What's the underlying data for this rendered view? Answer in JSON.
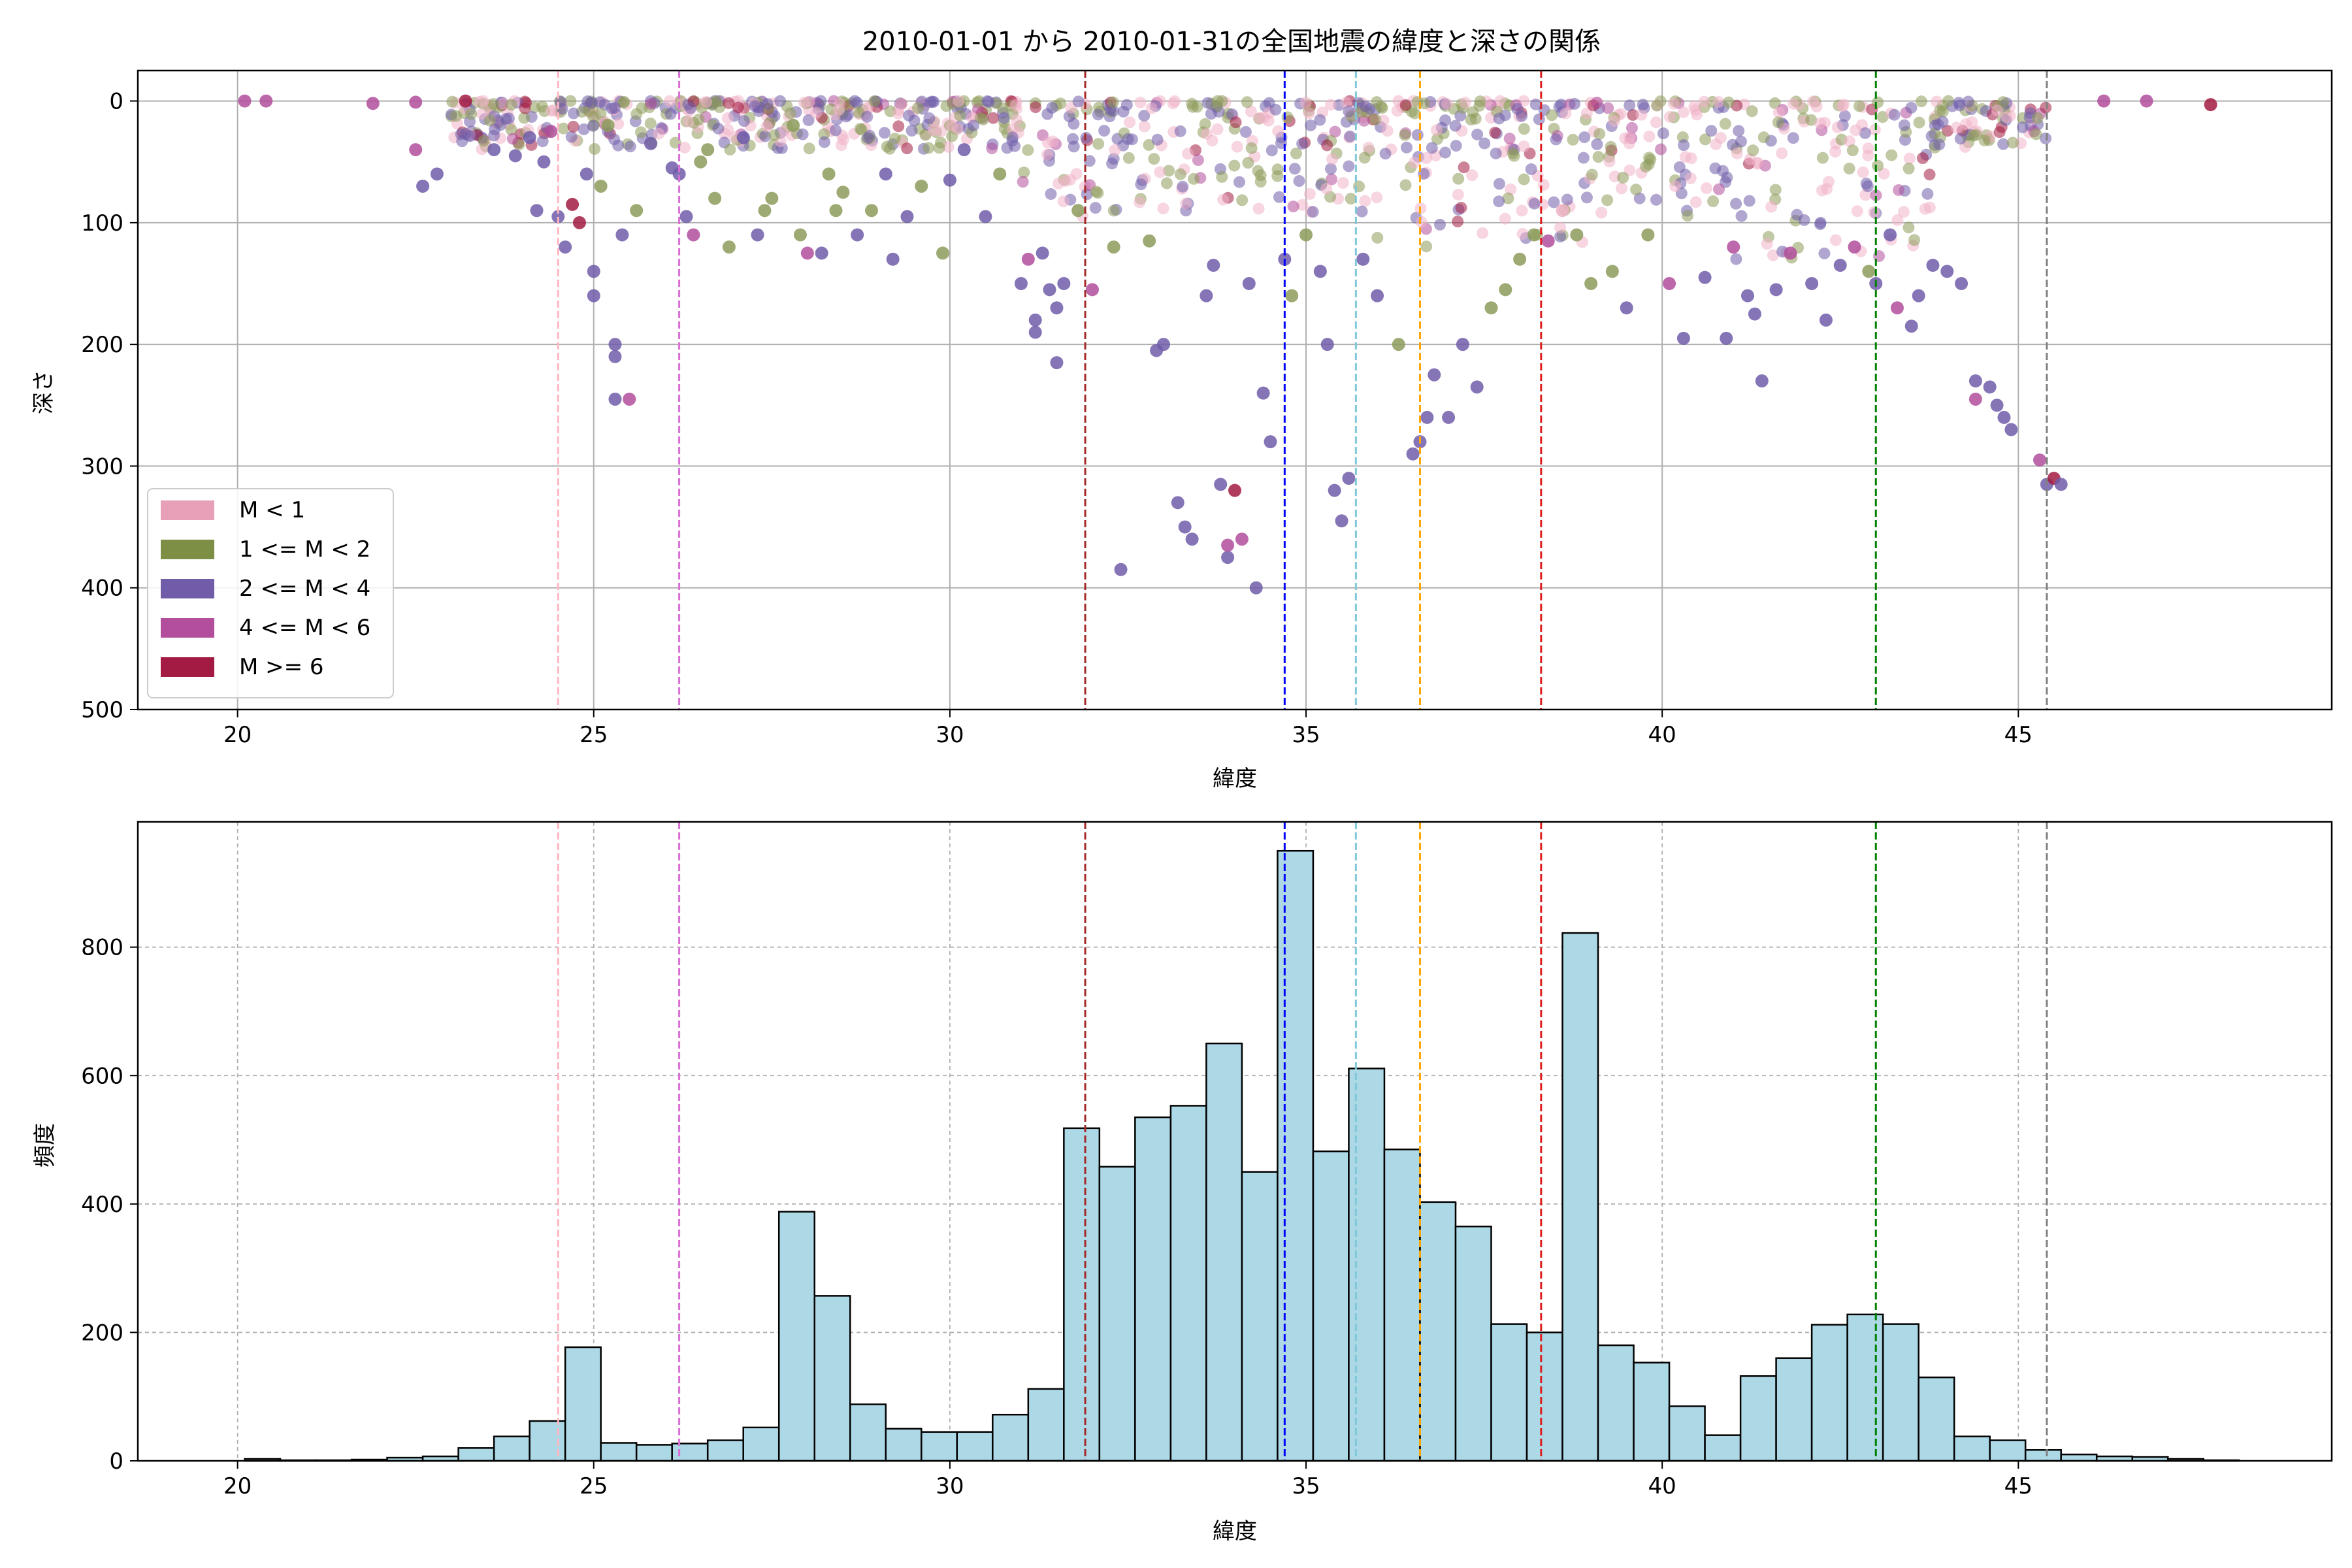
{
  "figure_title": "2010-01-01 から 2010-01-31の全国地震の緯度と深さの関係",
  "chart_data": [
    {
      "type": "scatter",
      "xlabel": "緯度",
      "ylabel": "深さ",
      "xlim": [
        18.6,
        49.4
      ],
      "ylim": [
        500,
        -25
      ],
      "y_inverted": true,
      "grid": true,
      "xticks": [
        20,
        25,
        30,
        35,
        40,
        45
      ],
      "yticks": [
        0,
        100,
        200,
        300,
        400,
        500
      ],
      "legend_position": "lower-left",
      "legend": [
        {
          "label": "M < 1",
          "color": "#e7a0b8"
        },
        {
          "label": "1 <= M < 2",
          "color": "#7d8f45"
        },
        {
          "label": "2 <= M < 4",
          "color": "#705ca9"
        },
        {
          "label": "4 <= M < 6",
          "color": "#b24e9c"
        },
        {
          "label": "M >= 6",
          "color": "#a31b42"
        }
      ],
      "scatter_colors": [
        "#f0b3c8",
        "#8c9b5a",
        "#705ca9",
        "#b24e9c",
        "#a31b42"
      ],
      "vlines": [
        {
          "x": 24.5,
          "color": "#ffb6c1"
        },
        {
          "x": 26.2,
          "color": "#da70d6"
        },
        {
          "x": 31.9,
          "color": "#a52a2a"
        },
        {
          "x": 34.7,
          "color": "#0000ff"
        },
        {
          "x": 35.7,
          "color": "#7ec8d8"
        },
        {
          "x": 36.6,
          "color": "#ffa500"
        },
        {
          "x": 38.3,
          "color": "#dd1f1f"
        },
        {
          "x": 43.0,
          "color": "#008000"
        },
        {
          "x": 45.4,
          "color": "#808080"
        }
      ],
      "points": [
        [
          20.1,
          0,
          3
        ],
        [
          20.4,
          0,
          3
        ],
        [
          21.9,
          2,
          3
        ],
        [
          22.5,
          1,
          3
        ],
        [
          22.5,
          40,
          3
        ],
        [
          22.6,
          70,
          2
        ],
        [
          22.8,
          60,
          2
        ],
        [
          23.2,
          0,
          4
        ],
        [
          23.6,
          40,
          2
        ],
        [
          23.9,
          45,
          2
        ],
        [
          24.1,
          30,
          2
        ],
        [
          24.2,
          90,
          2
        ],
        [
          24.3,
          50,
          2
        ],
        [
          24.4,
          25,
          3
        ],
        [
          24.5,
          95,
          2
        ],
        [
          24.6,
          120,
          2
        ],
        [
          24.7,
          85,
          4
        ],
        [
          24.8,
          100,
          4
        ],
        [
          24.9,
          60,
          2
        ],
        [
          25.0,
          140,
          2
        ],
        [
          25.0,
          160,
          2
        ],
        [
          25.1,
          70,
          1
        ],
        [
          25.2,
          20,
          1
        ],
        [
          25.3,
          200,
          2
        ],
        [
          25.3,
          210,
          2
        ],
        [
          25.3,
          245,
          2
        ],
        [
          25.4,
          110,
          2
        ],
        [
          25.5,
          245,
          3
        ],
        [
          25.6,
          90,
          1
        ],
        [
          25.8,
          35,
          2
        ],
        [
          26.1,
          55,
          2
        ],
        [
          26.2,
          60,
          2
        ],
        [
          26.3,
          95,
          2
        ],
        [
          26.4,
          110,
          3
        ],
        [
          26.5,
          50,
          1
        ],
        [
          26.6,
          40,
          1
        ],
        [
          26.7,
          80,
          1
        ],
        [
          26.9,
          120,
          1
        ],
        [
          27.1,
          30,
          2
        ],
        [
          27.3,
          110,
          2
        ],
        [
          27.4,
          90,
          1
        ],
        [
          27.5,
          80,
          1
        ],
        [
          27.8,
          20,
          1
        ],
        [
          27.9,
          110,
          1
        ],
        [
          28.0,
          125,
          3
        ],
        [
          28.2,
          125,
          2
        ],
        [
          28.3,
          60,
          1
        ],
        [
          28.4,
          90,
          1
        ],
        [
          28.5,
          75,
          1
        ],
        [
          28.7,
          110,
          2
        ],
        [
          28.9,
          90,
          1
        ],
        [
          29.1,
          60,
          2
        ],
        [
          29.2,
          130,
          2
        ],
        [
          29.4,
          95,
          2
        ],
        [
          29.6,
          70,
          1
        ],
        [
          29.9,
          125,
          1
        ],
        [
          30.0,
          65,
          2
        ],
        [
          30.2,
          40,
          2
        ],
        [
          30.5,
          95,
          2
        ],
        [
          30.7,
          60,
          1
        ],
        [
          31.0,
          150,
          2
        ],
        [
          31.1,
          130,
          3
        ],
        [
          31.2,
          180,
          2
        ],
        [
          31.2,
          190,
          2
        ],
        [
          31.3,
          125,
          2
        ],
        [
          31.4,
          155,
          2
        ],
        [
          31.5,
          170,
          2
        ],
        [
          31.5,
          215,
          2
        ],
        [
          31.6,
          150,
          2
        ],
        [
          31.8,
          90,
          1
        ],
        [
          32.0,
          155,
          3
        ],
        [
          32.3,
          120,
          1
        ],
        [
          32.4,
          385,
          2
        ],
        [
          32.8,
          115,
          1
        ],
        [
          32.9,
          205,
          2
        ],
        [
          33.0,
          200,
          2
        ],
        [
          33.2,
          330,
          2
        ],
        [
          33.3,
          350,
          2
        ],
        [
          33.4,
          360,
          2
        ],
        [
          33.6,
          160,
          2
        ],
        [
          33.7,
          135,
          2
        ],
        [
          33.8,
          315,
          2
        ],
        [
          33.9,
          375,
          2
        ],
        [
          33.9,
          365,
          3
        ],
        [
          34.0,
          320,
          4
        ],
        [
          34.1,
          360,
          3
        ],
        [
          34.2,
          150,
          2
        ],
        [
          34.3,
          400,
          2
        ],
        [
          34.4,
          240,
          2
        ],
        [
          34.5,
          280,
          2
        ],
        [
          34.7,
          130,
          2
        ],
        [
          34.8,
          160,
          1
        ],
        [
          35.0,
          110,
          1
        ],
        [
          35.2,
          140,
          2
        ],
        [
          35.3,
          200,
          2
        ],
        [
          35.4,
          320,
          2
        ],
        [
          35.5,
          345,
          2
        ],
        [
          35.6,
          310,
          2
        ],
        [
          35.8,
          130,
          2
        ],
        [
          36.0,
          160,
          2
        ],
        [
          36.3,
          200,
          1
        ],
        [
          36.5,
          290,
          2
        ],
        [
          36.6,
          280,
          2
        ],
        [
          36.7,
          260,
          2
        ],
        [
          36.8,
          225,
          2
        ],
        [
          37.0,
          260,
          2
        ],
        [
          37.2,
          200,
          2
        ],
        [
          37.4,
          235,
          2
        ],
        [
          37.6,
          170,
          1
        ],
        [
          37.8,
          155,
          1
        ],
        [
          38.0,
          130,
          1
        ],
        [
          38.2,
          110,
          1
        ],
        [
          38.4,
          115,
          3
        ],
        [
          38.6,
          90,
          0
        ],
        [
          38.8,
          110,
          1
        ],
        [
          39.0,
          150,
          1
        ],
        [
          39.3,
          140,
          1
        ],
        [
          39.5,
          170,
          2
        ],
        [
          39.8,
          110,
          1
        ],
        [
          40.1,
          150,
          3
        ],
        [
          40.3,
          195,
          2
        ],
        [
          40.6,
          145,
          2
        ],
        [
          40.9,
          195,
          2
        ],
        [
          41.0,
          120,
          3
        ],
        [
          41.2,
          160,
          2
        ],
        [
          41.3,
          175,
          2
        ],
        [
          41.4,
          230,
          2
        ],
        [
          41.6,
          155,
          2
        ],
        [
          41.8,
          125,
          3
        ],
        [
          42.1,
          150,
          2
        ],
        [
          42.3,
          180,
          2
        ],
        [
          42.5,
          135,
          2
        ],
        [
          42.7,
          120,
          3
        ],
        [
          42.9,
          140,
          1
        ],
        [
          43.0,
          150,
          2
        ],
        [
          43.2,
          110,
          2
        ],
        [
          43.3,
          170,
          3
        ],
        [
          43.5,
          185,
          2
        ],
        [
          43.6,
          160,
          2
        ],
        [
          43.8,
          135,
          2
        ],
        [
          44.0,
          140,
          2
        ],
        [
          44.2,
          150,
          2
        ],
        [
          44.4,
          230,
          2
        ],
        [
          44.4,
          245,
          3
        ],
        [
          44.6,
          235,
          2
        ],
        [
          44.7,
          250,
          2
        ],
        [
          44.8,
          260,
          2
        ],
        [
          44.9,
          270,
          2
        ],
        [
          45.3,
          295,
          3
        ],
        [
          45.4,
          315,
          2
        ],
        [
          45.5,
          310,
          4
        ],
        [
          45.6,
          315,
          2
        ],
        [
          46.2,
          0,
          3
        ],
        [
          46.8,
          0,
          3
        ],
        [
          47.7,
          3,
          4
        ]
      ]
    },
    {
      "type": "bar",
      "xlabel": "緯度",
      "ylabel": "頻度",
      "xlim": [
        18.6,
        49.4
      ],
      "ylim": [
        0,
        995
      ],
      "grid": true,
      "grid_style": "dashed",
      "xticks": [
        20,
        25,
        30,
        35,
        40,
        45
      ],
      "yticks": [
        0,
        200,
        400,
        600,
        800
      ],
      "bar_color": "#add8e6",
      "bin_start": 20.1,
      "bin_width": 0.5,
      "values": [
        3,
        1,
        1,
        2,
        5,
        7,
        20,
        38,
        62,
        177,
        28,
        25,
        27,
        32,
        52,
        388,
        257,
        88,
        50,
        45,
        45,
        72,
        112,
        518,
        458,
        535,
        553,
        650,
        450,
        950,
        482,
        611,
        485,
        403,
        365,
        213,
        200,
        822,
        180,
        153,
        85,
        40,
        132,
        160,
        212,
        228,
        213,
        130,
        38,
        32,
        17,
        10,
        7,
        6,
        3,
        1
      ],
      "vlines": [
        {
          "x": 24.5,
          "color": "#ffb6c1"
        },
        {
          "x": 26.2,
          "color": "#da70d6"
        },
        {
          "x": 31.9,
          "color": "#a52a2a"
        },
        {
          "x": 34.7,
          "color": "#0000ff"
        },
        {
          "x": 35.7,
          "color": "#7ec8d8"
        },
        {
          "x": 36.6,
          "color": "#ffa500"
        },
        {
          "x": 38.3,
          "color": "#dd1f1f"
        },
        {
          "x": 43.0,
          "color": "#008000"
        },
        {
          "x": 45.4,
          "color": "#808080"
        }
      ]
    }
  ]
}
